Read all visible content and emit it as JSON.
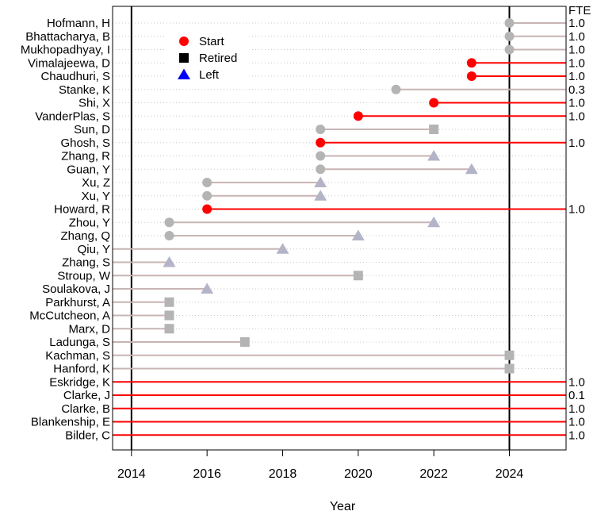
{
  "chart_data": {
    "type": "timeline",
    "xlabel": "Year",
    "xlim": [
      2013.5,
      2025.5
    ],
    "xticks": [
      2014,
      2016,
      2018,
      2020,
      2022,
      2024
    ],
    "vlines": [
      2014,
      2024
    ],
    "grid": "dotted horizontal lines per person",
    "fte_header": "FTE",
    "legend": {
      "position": "top-left inside plot",
      "entries": [
        {
          "label": "Start",
          "shape": "circle",
          "color": "#ff0000"
        },
        {
          "label": "Retired",
          "shape": "square",
          "color": "#000000"
        },
        {
          "label": "Left",
          "shape": "triangle",
          "color": "#0000ff"
        }
      ]
    },
    "colors": {
      "active_line": "#ff0000",
      "inactive_line": "#c8b4b4",
      "gray_marker": "#b4b4b4",
      "left_marker": "#b4b4c8"
    },
    "people": [
      {
        "name": "Hofmann, H",
        "start": 2024,
        "end": null,
        "end_type": "active",
        "highlight": false,
        "fte": "1.0"
      },
      {
        "name": "Bhattacharya, B",
        "start": 2024,
        "end": null,
        "end_type": "active",
        "highlight": false,
        "fte": "1.0"
      },
      {
        "name": "Mukhopadhyay, I",
        "start": 2024,
        "end": null,
        "end_type": "active",
        "highlight": false,
        "fte": "1.0"
      },
      {
        "name": "Vimalajeewa, D",
        "start": 2023,
        "end": null,
        "end_type": "active",
        "highlight": true,
        "fte": "1.0"
      },
      {
        "name": "Chaudhuri, S",
        "start": 2023,
        "end": null,
        "end_type": "active",
        "highlight": true,
        "fte": "1.0"
      },
      {
        "name": "Stanke, K",
        "start": 2021,
        "end": null,
        "end_type": "active",
        "highlight": false,
        "fte": "0.3"
      },
      {
        "name": "Shi, X",
        "start": 2022,
        "end": null,
        "end_type": "active",
        "highlight": true,
        "fte": "1.0"
      },
      {
        "name": "VanderPlas, S",
        "start": 2020,
        "end": null,
        "end_type": "active",
        "highlight": true,
        "fte": "1.0"
      },
      {
        "name": "Sun, D",
        "start": 2019,
        "end": 2022,
        "end_type": "retired",
        "highlight": false,
        "fte": ""
      },
      {
        "name": "Ghosh, S",
        "start": 2019,
        "end": null,
        "end_type": "active",
        "highlight": true,
        "fte": "1.0"
      },
      {
        "name": "Zhang, R",
        "start": 2019,
        "end": 2022,
        "end_type": "left",
        "highlight": false,
        "fte": ""
      },
      {
        "name": "Guan, Y",
        "start": 2019,
        "end": 2023,
        "end_type": "left",
        "highlight": false,
        "fte": ""
      },
      {
        "name": "Xu, Z",
        "start": 2016,
        "end": 2019,
        "end_type": "left",
        "highlight": false,
        "fte": ""
      },
      {
        "name": "Xu, Y",
        "start": 2016,
        "end": 2019,
        "end_type": "left",
        "highlight": false,
        "fte": ""
      },
      {
        "name": "Howard, R",
        "start": 2016,
        "end": null,
        "end_type": "active",
        "highlight": true,
        "fte": "1.0"
      },
      {
        "name": "Zhou, Y",
        "start": 2015,
        "end": 2022,
        "end_type": "left",
        "highlight": false,
        "fte": ""
      },
      {
        "name": "Zhang, Q",
        "start": 2015,
        "end": 2020,
        "end_type": "left",
        "highlight": false,
        "fte": ""
      },
      {
        "name": "Qiu, Y",
        "start": null,
        "end": 2018,
        "end_type": "left",
        "highlight": false,
        "fte": ""
      },
      {
        "name": "Zhang, S",
        "start": null,
        "end": 2015,
        "end_type": "left",
        "highlight": false,
        "fte": ""
      },
      {
        "name": "Stroup, W",
        "start": null,
        "end": 2020,
        "end_type": "retired",
        "highlight": false,
        "fte": ""
      },
      {
        "name": "Soulakova, J",
        "start": null,
        "end": 2016,
        "end_type": "left",
        "highlight": false,
        "fte": ""
      },
      {
        "name": "Parkhurst, A",
        "start": null,
        "end": 2015,
        "end_type": "retired",
        "highlight": false,
        "fte": ""
      },
      {
        "name": "McCutcheon, A",
        "start": null,
        "end": 2015,
        "end_type": "retired",
        "highlight": false,
        "fte": ""
      },
      {
        "name": "Marx, D",
        "start": null,
        "end": 2015,
        "end_type": "retired",
        "highlight": false,
        "fte": ""
      },
      {
        "name": "Ladunga, S",
        "start": null,
        "end": 2017,
        "end_type": "retired",
        "highlight": false,
        "fte": ""
      },
      {
        "name": "Kachman, S",
        "start": null,
        "end": 2024,
        "end_type": "retired",
        "highlight": false,
        "fte": ""
      },
      {
        "name": "Hanford, K",
        "start": null,
        "end": 2024,
        "end_type": "retired",
        "highlight": false,
        "fte": ""
      },
      {
        "name": "Eskridge, K",
        "start": null,
        "end": null,
        "end_type": "active",
        "highlight": true,
        "fte": "1.0"
      },
      {
        "name": "Clarke, J",
        "start": null,
        "end": null,
        "end_type": "active",
        "highlight": true,
        "fte": "0.1"
      },
      {
        "name": "Clarke, B",
        "start": null,
        "end": null,
        "end_type": "active",
        "highlight": true,
        "fte": "1.0"
      },
      {
        "name": "Blankenship, E",
        "start": null,
        "end": null,
        "end_type": "active",
        "highlight": true,
        "fte": "1.0"
      },
      {
        "name": "Bilder, C",
        "start": null,
        "end": null,
        "end_type": "active",
        "highlight": true,
        "fte": "1.0"
      }
    ]
  }
}
